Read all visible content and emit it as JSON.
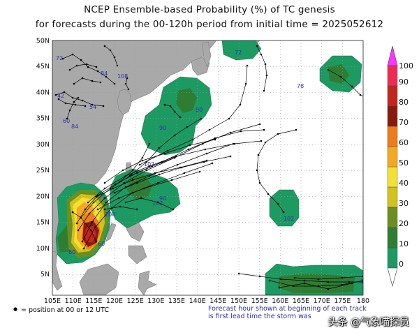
{
  "title": {
    "line1": "NCEP Ensemble-based Probability (%) of TC genesis",
    "line2": "for forecasts during the 00-120h period from initial time = 2025052612"
  },
  "map": {
    "lon_min": 105,
    "lon_max": 180,
    "lat_min": 1,
    "lat_max": 50,
    "lon_ticks": [
      "105E",
      "110E",
      "115E",
      "120E",
      "125E",
      "130E",
      "135E",
      "140E",
      "145E",
      "150E",
      "155E",
      "160E",
      "165E",
      "170E",
      "175E",
      "180"
    ],
    "lat_ticks": [
      "5N",
      "10N",
      "15N",
      "20N",
      "25N",
      "30N",
      "35N",
      "40N",
      "45N",
      "50N"
    ],
    "colors": {
      "ocean": "#ffffff",
      "land": "#a9a9a9",
      "grid": "#9a9a9a",
      "track": "#000000",
      "label": "#3030a8"
    }
  },
  "colorbar": {
    "levels": [
      "0",
      "10",
      "20",
      "30",
      "40",
      "50",
      "60",
      "70",
      "80",
      "90",
      "100"
    ],
    "colors": [
      "#1c9a62",
      "#2e7d32",
      "#6b8e23",
      "#d2c21a",
      "#f2e033",
      "#f5a623",
      "#ef7c1a",
      "#8b1a0e",
      "#c2261c",
      "#ee2c53",
      "#ff33ff"
    ]
  },
  "footnote": {
    "left": "= position at 00 or 12 UTC",
    "right_line1": "Forecast hour shown at beginning of each track",
    "right_line2": "is first lead time the storm was"
  },
  "track_labels": [
    "72",
    "84",
    "108",
    "42",
    "54",
    "60",
    "84",
    "90",
    "78",
    "102",
    "102",
    "90",
    "102",
    "108",
    "60",
    "72",
    "90",
    "60",
    "6"
  ],
  "watermark": "头条 @气象喵探员"
}
